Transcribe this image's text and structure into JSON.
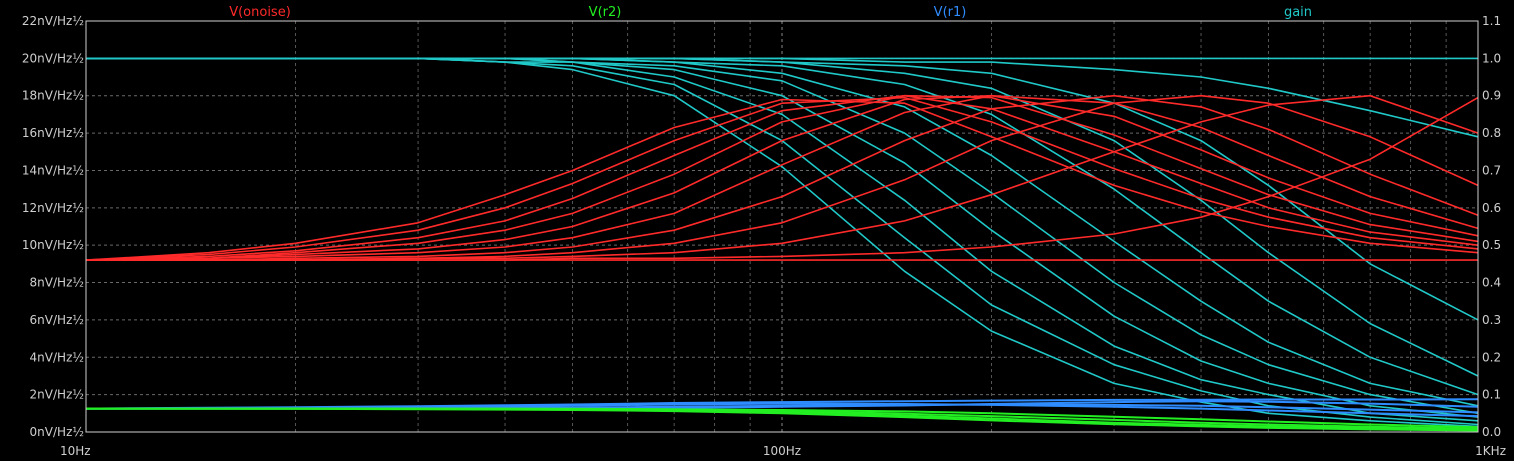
{
  "legend": [
    {
      "label": "V(onoise)",
      "color": "#ff2a2a"
    },
    {
      "label": "V(r2)",
      "color": "#22ee22"
    },
    {
      "label": "V(r1)",
      "color": "#2f8cff"
    },
    {
      "label": "gain",
      "color": "#20c8c8"
    }
  ],
  "axes": {
    "x_ticks": [
      "10Hz",
      "100Hz",
      "1KHz"
    ],
    "y_left_ticks": [
      "0nV/Hz½",
      "2nV/Hz½",
      "4nV/Hz½",
      "6nV/Hz½",
      "8nV/Hz½",
      "10nV/Hz½",
      "12nV/Hz½",
      "14nV/Hz½",
      "16nV/Hz½",
      "18nV/Hz½",
      "20nV/Hz½",
      "22nV/Hz½"
    ],
    "y_right_ticks": [
      "0.0",
      "0.1",
      "0.2",
      "0.3",
      "0.4",
      "0.5",
      "0.6",
      "0.7",
      "0.8",
      "0.9",
      "1.0",
      "1.1"
    ]
  },
  "chart_data": {
    "type": "line",
    "x_scale": "log",
    "xlim": [
      10,
      1000
    ],
    "x_unit": "Hz",
    "ylim_left": [
      0,
      22
    ],
    "y_left_unit": "nV/Hz½",
    "ylim_right": [
      0,
      1.1
    ],
    "grid": true,
    "legend_position": "top",
    "x": [
      10,
      15,
      20,
      30,
      40,
      50,
      70,
      100,
      150,
      200,
      300,
      400,
      500,
      700,
      1000
    ],
    "series": [
      {
        "name": "gain",
        "axis": "right",
        "color": "#20c8c8",
        "style": "family",
        "curves": [
          [
            1.0,
            1.0,
            1.0,
            1.0,
            0.99,
            0.97,
            0.9,
            0.71,
            0.43,
            0.27,
            0.13,
            0.08,
            0.05,
            0.03,
            0.015
          ],
          [
            1.0,
            1.0,
            1.0,
            1.0,
            0.99,
            0.98,
            0.93,
            0.78,
            0.52,
            0.34,
            0.18,
            0.11,
            0.07,
            0.04,
            0.02
          ],
          [
            1.0,
            1.0,
            1.0,
            1.0,
            0.99,
            0.99,
            0.95,
            0.85,
            0.62,
            0.43,
            0.23,
            0.14,
            0.1,
            0.05,
            0.03
          ],
          [
            1.0,
            1.0,
            1.0,
            1.0,
            1.0,
            0.99,
            0.97,
            0.9,
            0.72,
            0.54,
            0.31,
            0.19,
            0.13,
            0.07,
            0.04
          ],
          [
            1.0,
            1.0,
            1.0,
            1.0,
            1.0,
            0.99,
            0.98,
            0.94,
            0.8,
            0.64,
            0.4,
            0.26,
            0.18,
            0.1,
            0.05
          ],
          [
            1.0,
            1.0,
            1.0,
            1.0,
            1.0,
            1.0,
            0.99,
            0.96,
            0.87,
            0.74,
            0.51,
            0.35,
            0.24,
            0.13,
            0.07
          ],
          [
            1.0,
            1.0,
            1.0,
            1.0,
            1.0,
            1.0,
            0.99,
            0.98,
            0.93,
            0.85,
            0.65,
            0.48,
            0.35,
            0.2,
            0.1
          ],
          [
            1.0,
            1.0,
            1.0,
            1.0,
            1.0,
            1.0,
            1.0,
            0.99,
            0.96,
            0.92,
            0.78,
            0.62,
            0.48,
            0.29,
            0.15
          ],
          [
            1.0,
            1.0,
            1.0,
            1.0,
            1.0,
            1.0,
            1.0,
            0.99,
            0.98,
            0.96,
            0.88,
            0.78,
            0.66,
            0.45,
            0.3
          ],
          [
            1.0,
            1.0,
            1.0,
            1.0,
            1.0,
            1.0,
            1.0,
            1.0,
            0.99,
            0.99,
            0.97,
            0.95,
            0.92,
            0.86,
            0.79
          ],
          [
            1.0,
            1.0,
            1.0,
            1.0,
            1.0,
            1.0,
            1.0,
            1.0,
            1.0,
            1.0,
            1.0,
            1.0,
            1.0,
            1.0,
            1.0
          ]
        ]
      },
      {
        "name": "V(onoise)",
        "axis": "left",
        "color": "#ff2a2a",
        "style": "family",
        "curves": [
          [
            9.2,
            9.6,
            10.1,
            11.2,
            12.7,
            14.0,
            16.3,
            17.8,
            17.6,
            15.8,
            13.2,
            11.8,
            11.0,
            10.1,
            9.6
          ],
          [
            9.2,
            9.5,
            9.9,
            10.8,
            12.0,
            13.3,
            15.6,
            17.6,
            17.9,
            16.6,
            14.1,
            12.5,
            11.5,
            10.4,
            9.8
          ],
          [
            9.2,
            9.4,
            9.7,
            10.4,
            11.3,
            12.5,
            14.8,
            17.2,
            18.0,
            17.3,
            15.0,
            13.3,
            12.0,
            10.7,
            10.0
          ],
          [
            9.2,
            9.3,
            9.6,
            10.1,
            10.8,
            11.7,
            13.8,
            16.6,
            18.0,
            17.9,
            15.9,
            14.1,
            12.7,
            11.1,
            10.2
          ],
          [
            9.2,
            9.3,
            9.5,
            9.8,
            10.3,
            11.0,
            12.8,
            15.6,
            17.8,
            18.0,
            16.9,
            15.1,
            13.6,
            11.7,
            10.5
          ],
          [
            9.2,
            9.3,
            9.4,
            9.6,
            9.9,
            10.4,
            11.7,
            14.3,
            17.1,
            18.0,
            17.6,
            16.3,
            14.8,
            12.6,
            10.9
          ],
          [
            9.2,
            9.2,
            9.3,
            9.4,
            9.6,
            9.9,
            10.8,
            12.6,
            15.6,
            17.3,
            18.0,
            17.4,
            16.2,
            13.8,
            11.6
          ],
          [
            9.2,
            9.2,
            9.2,
            9.3,
            9.4,
            9.6,
            10.1,
            11.2,
            13.5,
            15.6,
            17.6,
            18.0,
            17.6,
            15.8,
            13.2
          ],
          [
            9.2,
            9.2,
            9.2,
            9.3,
            9.3,
            9.4,
            9.6,
            10.1,
            11.3,
            12.7,
            15.0,
            16.6,
            17.5,
            18.0,
            16.0
          ],
          [
            9.2,
            9.2,
            9.2,
            9.2,
            9.2,
            9.3,
            9.3,
            9.4,
            9.6,
            9.9,
            10.6,
            11.5,
            12.6,
            14.6,
            17.9
          ],
          [
            9.2,
            9.2,
            9.2,
            9.2,
            9.2,
            9.2,
            9.2,
            9.2,
            9.2,
            9.2,
            9.2,
            9.2,
            9.2,
            9.2,
            9.2
          ]
        ]
      },
      {
        "name": "V(r1)",
        "axis": "left",
        "color": "#2f8cff",
        "style": "family",
        "curves": [
          [
            1.25,
            1.3,
            1.32,
            1.38,
            1.43,
            1.47,
            1.55,
            1.6,
            1.65,
            1.68,
            1.72,
            1.73,
            1.74,
            1.74,
            1.75
          ],
          [
            1.25,
            1.26,
            1.28,
            1.3,
            1.35,
            1.4,
            1.48,
            1.52,
            1.5,
            1.45,
            1.35,
            1.25,
            1.15,
            1.0,
            0.85
          ],
          [
            1.25,
            1.25,
            1.25,
            1.26,
            1.28,
            1.3,
            1.35,
            1.4,
            1.45,
            1.47,
            1.45,
            1.4,
            1.33,
            1.2,
            1.05
          ],
          [
            1.25,
            1.25,
            1.25,
            1.25,
            1.26,
            1.27,
            1.3,
            1.35,
            1.42,
            1.5,
            1.6,
            1.65,
            1.62,
            1.52,
            1.35
          ]
        ]
      },
      {
        "name": "V(r2)",
        "axis": "left",
        "color": "#22ee22",
        "style": "family",
        "curves": [
          [
            1.25,
            1.25,
            1.24,
            1.22,
            1.2,
            1.18,
            1.12,
            1.0,
            0.8,
            0.62,
            0.42,
            0.3,
            0.22,
            0.14,
            0.08
          ],
          [
            1.25,
            1.25,
            1.25,
            1.24,
            1.22,
            1.2,
            1.15,
            1.05,
            0.88,
            0.72,
            0.5,
            0.38,
            0.3,
            0.2,
            0.12
          ],
          [
            1.25,
            1.25,
            1.25,
            1.25,
            1.24,
            1.22,
            1.2,
            1.12,
            0.98,
            0.85,
            0.65,
            0.5,
            0.4,
            0.28,
            0.18
          ],
          [
            1.25,
            1.25,
            1.25,
            1.25,
            1.25,
            1.24,
            1.22,
            1.18,
            1.1,
            1.0,
            0.82,
            0.68,
            0.56,
            0.4,
            0.26
          ]
        ]
      }
    ]
  }
}
